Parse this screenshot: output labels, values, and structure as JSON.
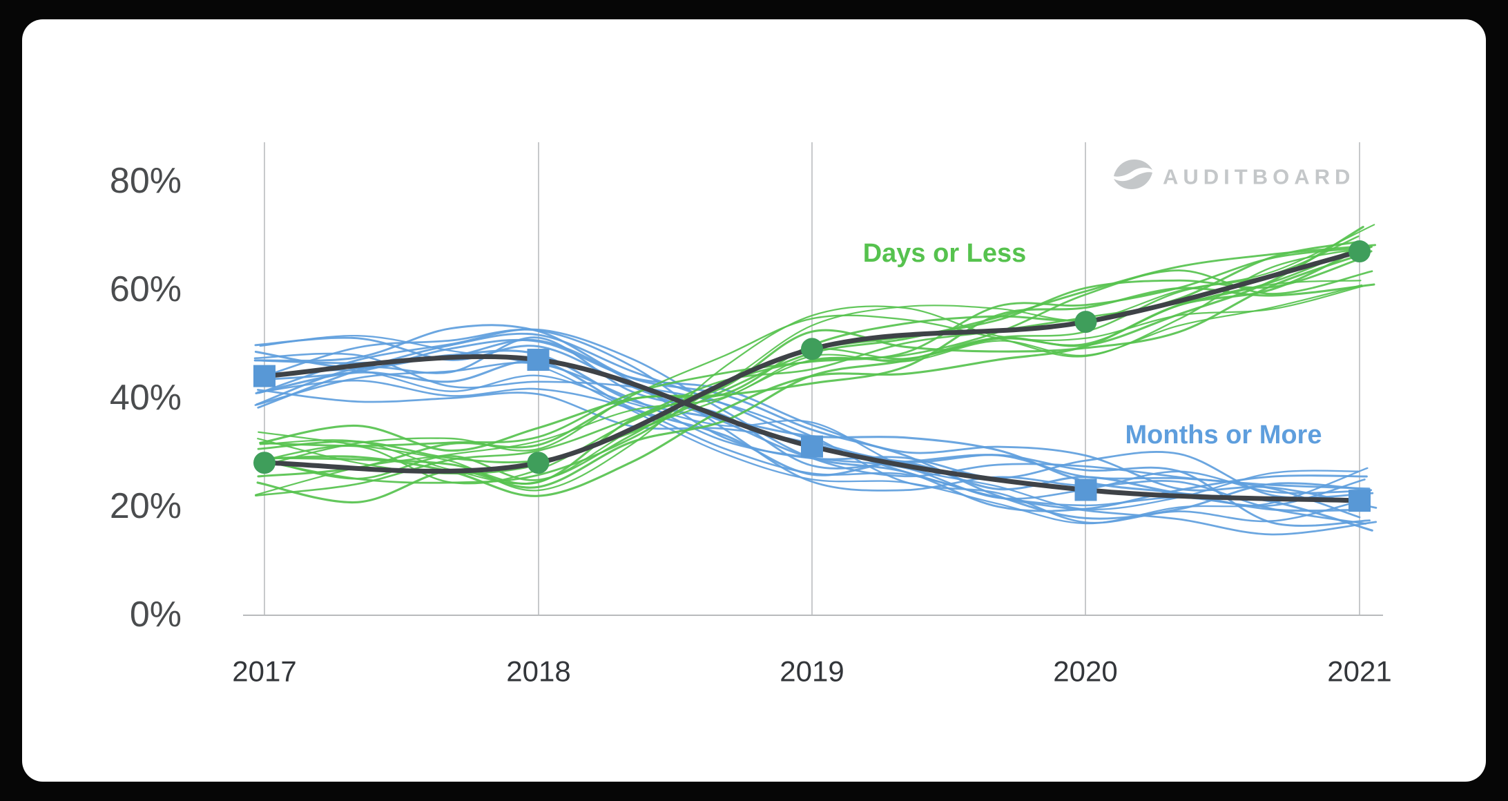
{
  "brand": {
    "logo_text": "AUDITBOARD",
    "logo_color": "#c4c7c9"
  },
  "legend": {
    "days_or_less_label": "Days or Less",
    "months_or_more_label": "Months or More"
  },
  "axes": {
    "y_ticks": [
      "80%",
      "60%",
      "40%",
      "20%",
      "0%"
    ],
    "x_ticks": [
      "2017",
      "2018",
      "2019",
      "2020",
      "2021"
    ]
  },
  "colors": {
    "background": "#060606",
    "card": "#ffffff",
    "grid": "#c7c9cb",
    "axis_line": "#b8babc",
    "green_line": "#56c24e",
    "green_marker": "#3f9e5b",
    "blue_line": "#5e9edd",
    "blue_marker": "#5898d6",
    "trend": "#3e4247"
  },
  "chart_data": {
    "type": "line",
    "style": "sketch-ensemble",
    "title": "",
    "x": [
      2017,
      2018,
      2019,
      2020,
      2021
    ],
    "series": [
      {
        "name": "Days or Less",
        "values": [
          28,
          28,
          49,
          54,
          67
        ],
        "line_color": "#56c24e",
        "marker_color": "#3f9e5b",
        "marker": "circle"
      },
      {
        "name": "Months or More",
        "values": [
          44,
          47,
          31,
          23,
          21
        ],
        "line_color": "#5e9edd",
        "marker_color": "#5898d6",
        "marker": "square"
      }
    ],
    "trend_line_color": "#3e4247",
    "ensemble_lines_per_series": 16,
    "ensemble_band_pct": 6.5,
    "ylim": [
      0,
      88
    ],
    "y_tick_values": [
      0,
      20,
      40,
      60,
      80
    ],
    "xlabel": "",
    "ylabel": "",
    "grid": "vertical-gridlines",
    "legend_position": "inline-annotations"
  }
}
